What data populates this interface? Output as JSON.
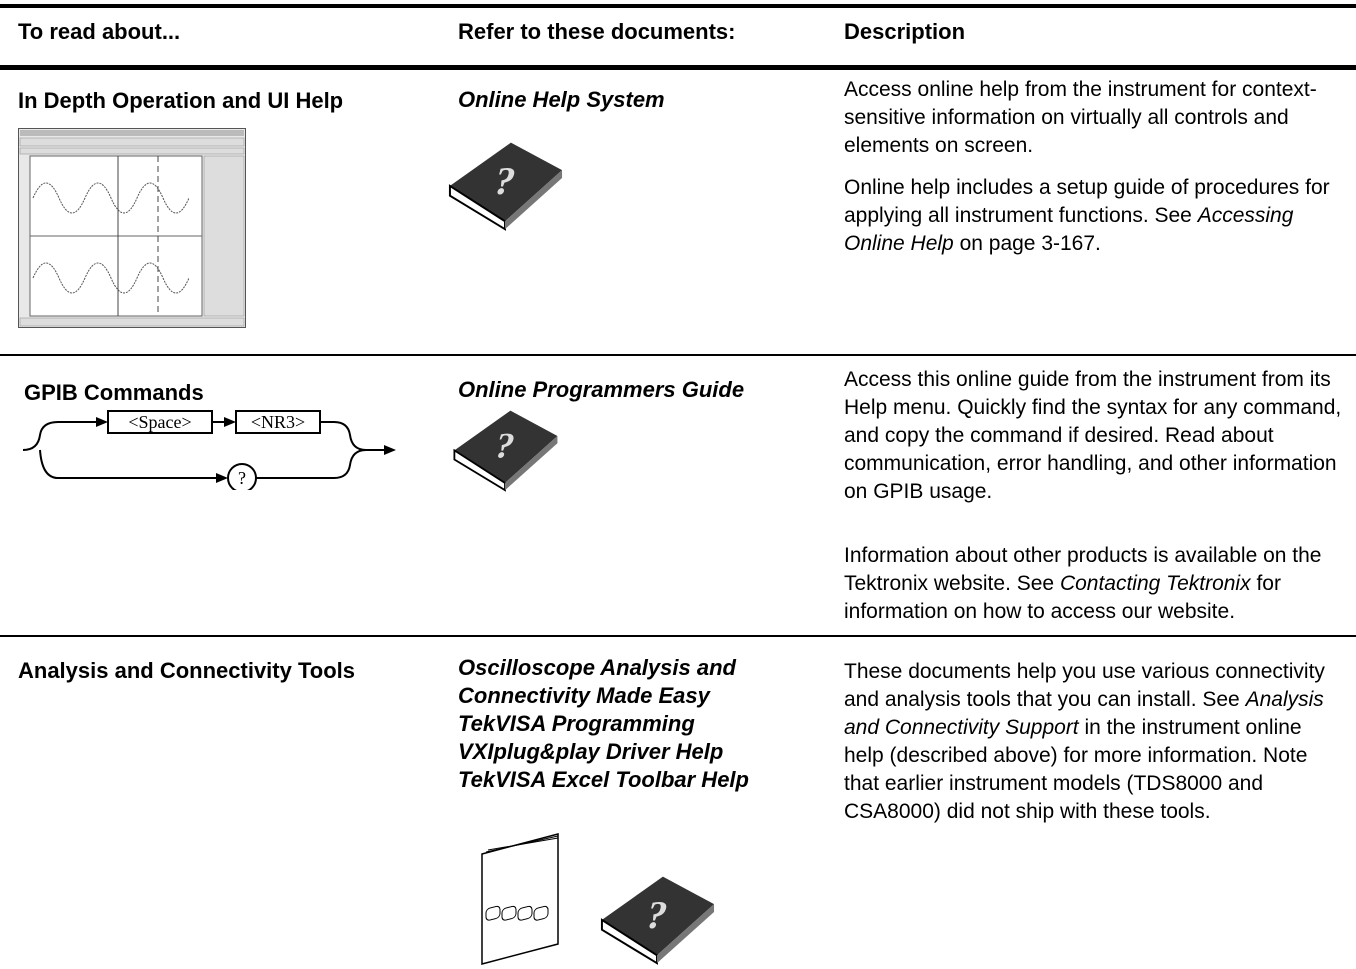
{
  "header": {
    "columns": [
      "To read about...",
      "Refer to these documents:",
      "Description"
    ]
  },
  "rows": [
    {
      "topic": "In Depth Operation and UI Help",
      "documents": [
        "Online Help System"
      ],
      "description": [
        [
          "Access online help from the instrument for context-sensitive information on virtually all controls and elements on screen."
        ],
        [
          "Online help includes a setup guide of procedures for applying all instrument functions. See ",
          "Accessing Online Help",
          " on page 3-167."
        ]
      ]
    },
    {
      "topic": "GPIB Commands",
      "syntax": [
        "<Space>",
        "<NR3>",
        "?"
      ],
      "documents": [
        "Online Programmers Guide"
      ],
      "description": [
        [
          "Access this online guide from the instrument from its Help menu. Quickly find the syntax for any command, and copy the command if desired. Read about communication, error handling, and other information on GPIB usage."
        ],
        [
          "Information about other products is available on the Tektronix website. See ",
          "Contacting Tektronix",
          " for information on how to access our website."
        ]
      ]
    },
    {
      "topic": "Analysis and Connectivity Tools",
      "documents": [
        "Oscilloscope Analysis and Connectivity Made Easy",
        "TekVISA Programming",
        "VXIplug&play Driver Help",
        "TekVISA Excel Toolbar Help"
      ],
      "description": [
        [
          "These documents help you use various connectivity and analysis tools that you can install. See ",
          "Analysis and Connectivity Support",
          " in the instrument online help (described above) for more information. Note that earlier instrument models (TDS8000 and CSA8000) did not ship with these tools."
        ]
      ]
    }
  ]
}
